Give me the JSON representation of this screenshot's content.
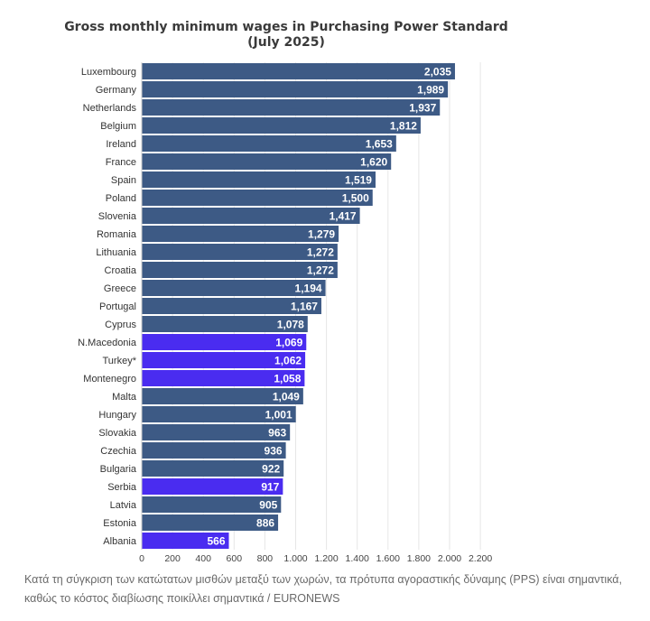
{
  "chart_data": {
    "type": "bar",
    "orientation": "horizontal",
    "title": "Gross monthly minimum wages in Purchasing Power Standard",
    "subtitle": "(July 2025)",
    "categories": [
      "Luxembourg",
      "Germany",
      "Netherlands",
      "Belgium",
      "Ireland",
      "France",
      "Spain",
      "Poland",
      "Slovenia",
      "Romania",
      "Lithuania",
      "Croatia",
      "Greece",
      "Portugal",
      "Cyprus",
      "N.Macedonia",
      "Turkey*",
      "Montenegro",
      "Malta",
      "Hungary",
      "Slovakia",
      "Czechia",
      "Bulgaria",
      "Serbia",
      "Latvia",
      "Estonia",
      "Albania"
    ],
    "values": [
      2035,
      1989,
      1937,
      1812,
      1653,
      1620,
      1519,
      1500,
      1417,
      1279,
      1272,
      1272,
      1194,
      1167,
      1078,
      1069,
      1062,
      1058,
      1049,
      1001,
      963,
      936,
      922,
      917,
      905,
      886,
      566
    ],
    "value_labels": [
      "2,035",
      "1,989",
      "1,937",
      "1,812",
      "1,653",
      "1,620",
      "1,519",
      "1,500",
      "1,417",
      "1,279",
      "1,272",
      "1,272",
      "1,194",
      "1,167",
      "1,078",
      "1,069",
      "1,062",
      "1,058",
      "1,049",
      "1,001",
      "963",
      "936",
      "922",
      "917",
      "905",
      "886",
      "566"
    ],
    "highlighted": [
      "N.Macedonia",
      "Turkey*",
      "Montenegro",
      "Serbia",
      "Albania"
    ],
    "x_ticks": [
      0,
      200,
      400,
      600,
      800,
      1000,
      1200,
      1400,
      1600,
      1800,
      2000,
      2200
    ],
    "x_tick_labels": [
      "0",
      "200",
      "400",
      "600",
      "800",
      "1.000",
      "1.200",
      "1.400",
      "1.600",
      "1.800",
      "2.000",
      "2.200"
    ],
    "xlim": [
      0,
      2200
    ],
    "grid": true,
    "colors": {
      "default": "#3d5a85",
      "highlight": "#4a2cf0"
    }
  },
  "caption": "Κατά τη σύγκριση των κατώτατων μισθών μεταξύ των χωρών, τα πρότυπα αγοραστικής δύναμης (PPS) είναι σημαντικά, καθώς το κόστος διαβίωσης ποικίλλει σημαντικά / EURONEWS"
}
